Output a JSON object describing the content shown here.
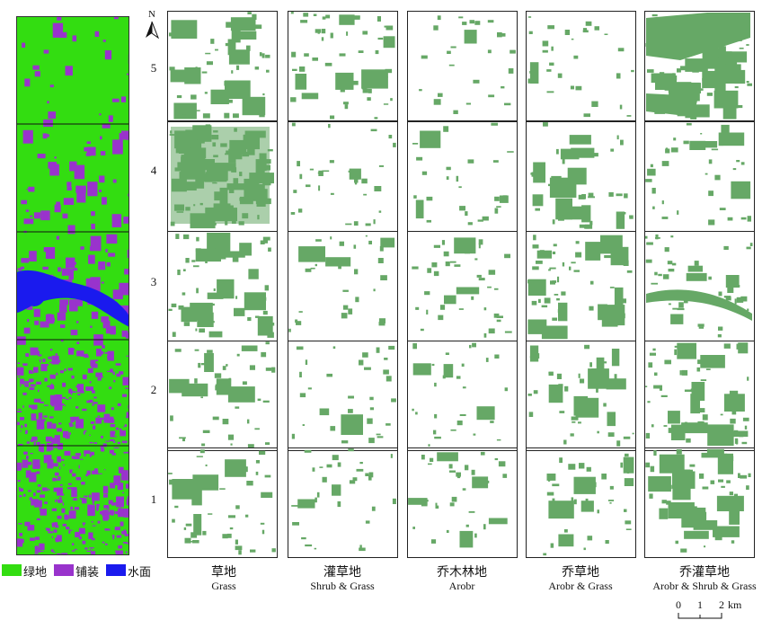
{
  "north_label": "N",
  "row_labels": [
    "5",
    "4",
    "3",
    "2",
    "1"
  ],
  "legend": [
    {
      "label": "绿地",
      "color": "#33dd11"
    },
    {
      "label": "铺装",
      "color": "#9933cc"
    },
    {
      "label": "水面",
      "color": "#1a1aee"
    }
  ],
  "columns": [
    {
      "zh": "草地",
      "en": "Grass"
    },
    {
      "zh": "灌草地",
      "en": "Shrub & Grass"
    },
    {
      "zh": "乔木林地",
      "en": "Arobr"
    },
    {
      "zh": "乔草地",
      "en": "Arobr & Grass"
    },
    {
      "zh": "乔灌草地",
      "en": "Arobr & Shrub & Grass"
    }
  ],
  "scale": {
    "ticks": [
      "0",
      "1",
      "2"
    ],
    "unit": "km"
  },
  "colors": {
    "vegetation_patch": "#66a866",
    "panel_border": "#222222"
  }
}
